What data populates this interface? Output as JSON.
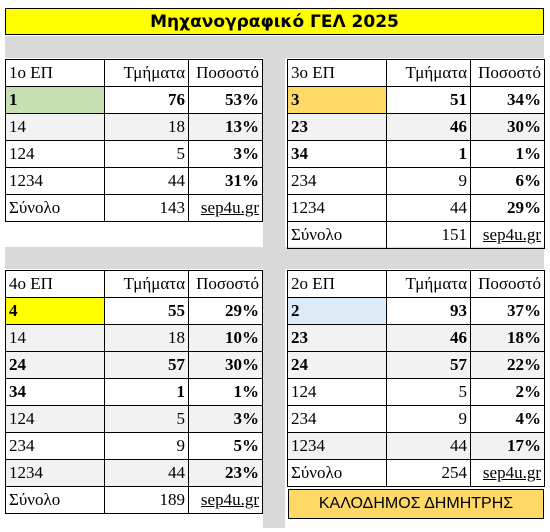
{
  "title": "Μηχανογραφικό ΓΕΛ 2025",
  "author": "ΚΑΛΟΔΗΜΟΣ ΔΗΜΗΤΡΗΣ",
  "tables": {
    "ep1": {
      "header": [
        "1ο ΕΠ",
        "Τμήματα",
        "Ποσοστό"
      ],
      "rows": [
        {
          "label": "1",
          "sections": "76",
          "percent": "53%"
        },
        {
          "label": "14",
          "sections": "18",
          "percent": "13%"
        },
        {
          "label": "124",
          "sections": "5",
          "percent": "3%"
        },
        {
          "label": "1234",
          "sections": "44",
          "percent": "31%"
        }
      ],
      "total": {
        "label": "Σύνολο",
        "sections": "143",
        "link": "sep4u.gr"
      }
    },
    "ep3": {
      "header": [
        "3ο ΕΠ",
        "Τμήματα",
        "Ποσοστό"
      ],
      "rows": [
        {
          "label": "3",
          "sections": "51",
          "percent": "34%"
        },
        {
          "label": "23",
          "sections": "46",
          "percent": "30%"
        },
        {
          "label": "34",
          "sections": "1",
          "percent": "1%"
        },
        {
          "label": "234",
          "sections": "9",
          "percent": "6%"
        },
        {
          "label": "1234",
          "sections": "44",
          "percent": "29%"
        }
      ],
      "total": {
        "label": "Σύνολο",
        "sections": "151",
        "link": "sep4u.gr"
      }
    },
    "ep4": {
      "header": [
        "4ο ΕΠ",
        "Τμήματα",
        "Ποσοστό"
      ],
      "rows": [
        {
          "label": "4",
          "sections": "55",
          "percent": "29%"
        },
        {
          "label": "14",
          "sections": "18",
          "percent": "10%"
        },
        {
          "label": "24",
          "sections": "57",
          "percent": "30%"
        },
        {
          "label": "34",
          "sections": "1",
          "percent": "1%"
        },
        {
          "label": "124",
          "sections": "5",
          "percent": "3%"
        },
        {
          "label": "234",
          "sections": "9",
          "percent": "5%"
        },
        {
          "label": "1234",
          "sections": "44",
          "percent": "23%"
        }
      ],
      "total": {
        "label": "Σύνολο",
        "sections": "189",
        "link": "sep4u.gr"
      }
    },
    "ep2": {
      "header": [
        "2ο ΕΠ",
        "Τμήματα",
        "Ποσοστό"
      ],
      "rows": [
        {
          "label": "2",
          "sections": "93",
          "percent": "37%"
        },
        {
          "label": "23",
          "sections": "46",
          "percent": "18%"
        },
        {
          "label": "24",
          "sections": "57",
          "percent": "22%"
        },
        {
          "label": "124",
          "sections": "5",
          "percent": "2%"
        },
        {
          "label": "234",
          "sections": "9",
          "percent": "4%"
        },
        {
          "label": "1234",
          "sections": "44",
          "percent": "17%"
        }
      ],
      "total": {
        "label": "Σύνολο",
        "sections": "254",
        "link": "sep4u.gr"
      }
    }
  },
  "colors": {
    "title_bg": "#ffff00",
    "ep1_highlight": "#c6e0b4",
    "ep3_highlight": "#ffd966",
    "ep4_highlight": "#ffff00",
    "ep2_highlight": "#ddebf7",
    "author_bg": "#ffd966"
  }
}
